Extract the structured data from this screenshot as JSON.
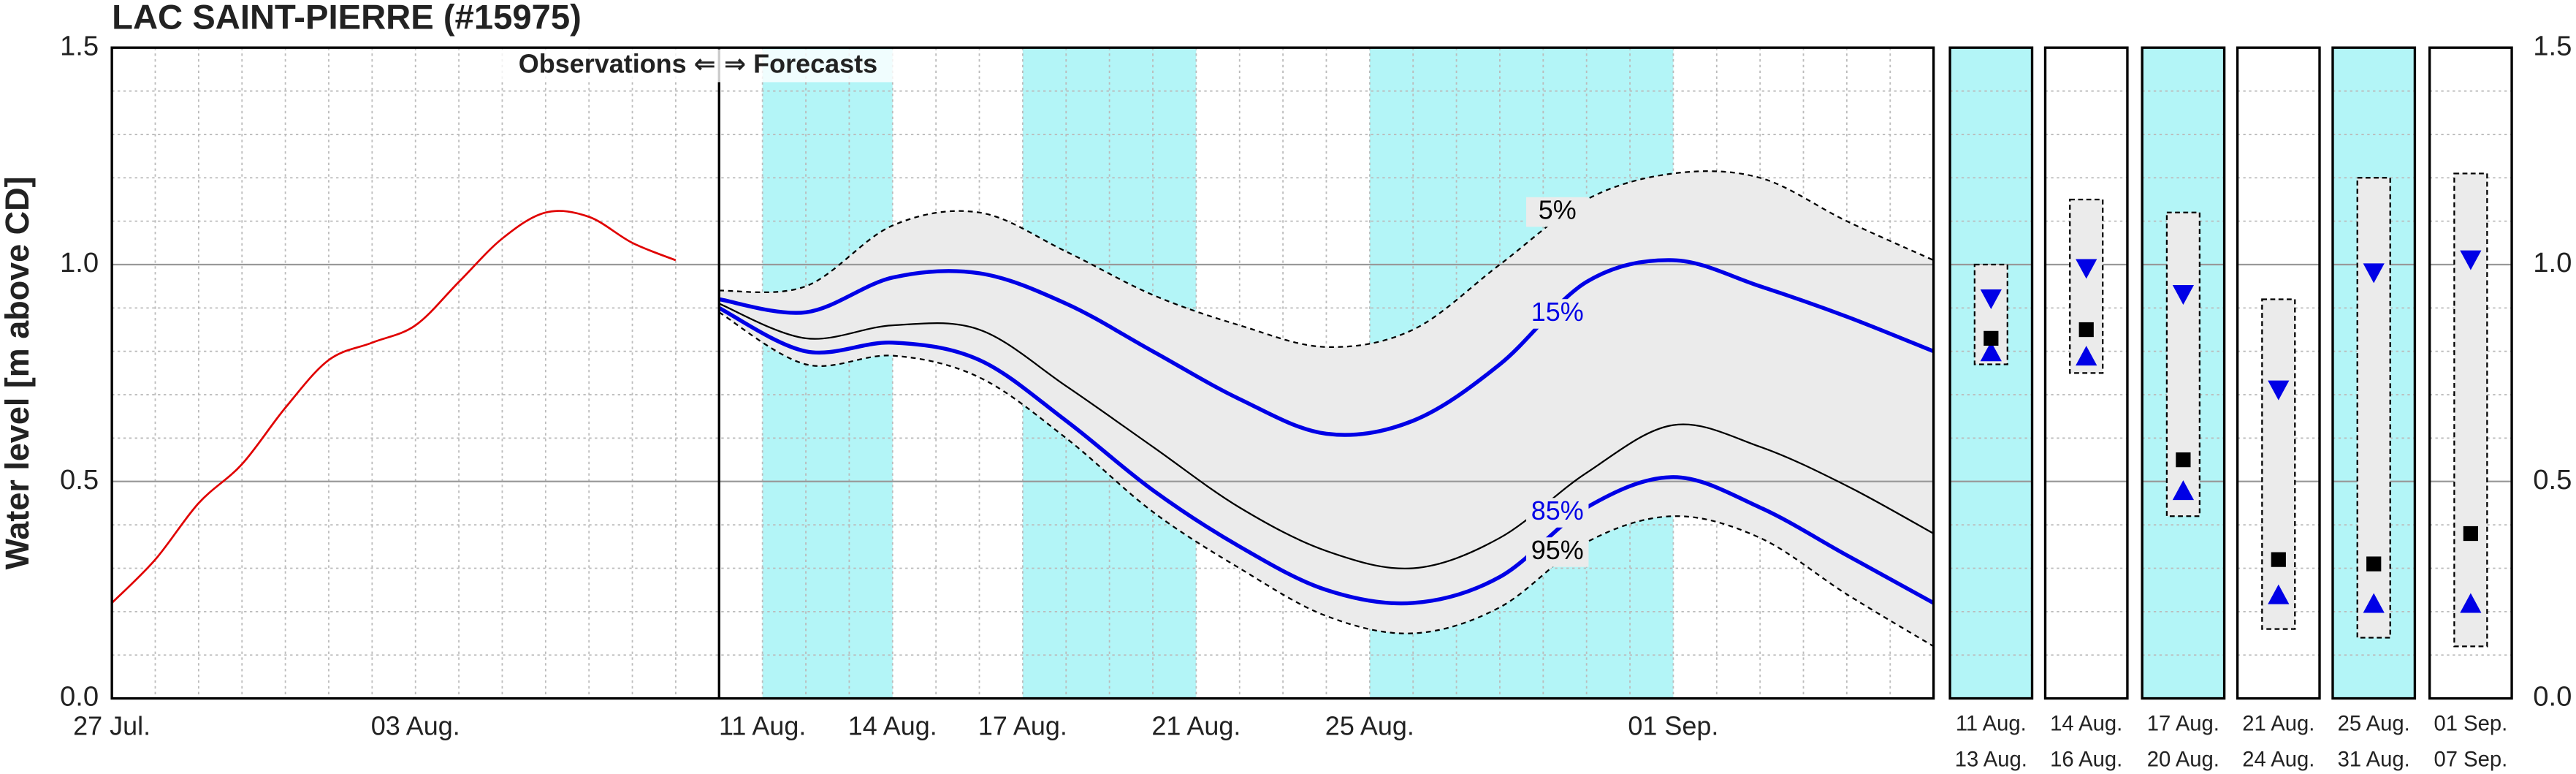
{
  "chart_data": {
    "type": "line",
    "title": "LAC SAINT-PIERRE (#15975)",
    "ylabel": "Water level [m above CD]",
    "annotations": [
      "Observations ⇐",
      "⇒ Forecasts"
    ],
    "xlim": [
      0,
      42
    ],
    "ylim": [
      0,
      1.5
    ],
    "yticks": [
      {
        "value": 0,
        "label": "0.0"
      },
      {
        "value": 0.5,
        "label": "0.5"
      },
      {
        "value": 1,
        "label": "1.0"
      },
      {
        "value": 1.5,
        "label": "1.5"
      }
    ],
    "y_minor_ticks": [
      0.1,
      0.2,
      0.3,
      0.4,
      0.6,
      0.7,
      0.8,
      0.9,
      1.1,
      1.2,
      1.3,
      1.4
    ],
    "xticks": [
      {
        "value": 0,
        "label": "27 Jul."
      },
      {
        "value": 7,
        "label": "03 Aug."
      },
      {
        "value": 15,
        "label": "11 Aug."
      },
      {
        "value": 18,
        "label": "14 Aug."
      },
      {
        "value": 21,
        "label": "17 Aug."
      },
      {
        "value": 25,
        "label": "21 Aug."
      },
      {
        "value": 29,
        "label": "25 Aug."
      },
      {
        "value": 36,
        "label": "01 Sep."
      }
    ],
    "x_minor_ticks": [
      1,
      2,
      3,
      4,
      5,
      6,
      8,
      9,
      10,
      11,
      12,
      13,
      16,
      17,
      19,
      20,
      22,
      23,
      24,
      26,
      27,
      28,
      30,
      31,
      32,
      33,
      34,
      35,
      37,
      38,
      39,
      40,
      41
    ],
    "grid": true,
    "split": 14,
    "shade_color": "#b3f5f7",
    "band_color": "#ebebeb",
    "shaded_ranges": [
      [
        15,
        18
      ],
      [
        21,
        25
      ],
      [
        29,
        36
      ]
    ],
    "observations": {
      "color": "#e00000",
      "x": [
        0,
        1,
        2,
        3,
        4,
        5,
        6,
        7,
        8,
        9,
        10,
        11,
        12,
        13
      ],
      "values": [
        0.22,
        0.32,
        0.45,
        0.54,
        0.67,
        0.78,
        0.82,
        0.86,
        0.96,
        1.06,
        1.12,
        1.11,
        1.05,
        1.01
      ]
    },
    "forecast_x": [
      14,
      16,
      18,
      20,
      22,
      24,
      26,
      28,
      30,
      32,
      34,
      36,
      38,
      40,
      42
    ],
    "series": [
      {
        "name": "5%",
        "color": "#000000",
        "dashed": true,
        "values": [
          0.94,
          0.95,
          1.09,
          1.12,
          1.03,
          0.93,
          0.86,
          0.81,
          0.85,
          1.0,
          1.15,
          1.21,
          1.2,
          1.1,
          1.01
        ]
      },
      {
        "name": "15%",
        "color": "#0000e6",
        "values": [
          0.92,
          0.89,
          0.97,
          0.98,
          0.91,
          0.8,
          0.69,
          0.61,
          0.64,
          0.77,
          0.96,
          1.01,
          0.95,
          0.88,
          0.8
        ]
      },
      {
        "color": "#000000",
        "values": [
          0.91,
          0.83,
          0.86,
          0.85,
          0.72,
          0.58,
          0.44,
          0.34,
          0.3,
          0.37,
          0.52,
          0.63,
          0.58,
          0.49,
          0.38
        ]
      },
      {
        "name": "85%",
        "color": "#0000e6",
        "values": [
          0.9,
          0.8,
          0.82,
          0.78,
          0.64,
          0.48,
          0.35,
          0.25,
          0.22,
          0.28,
          0.44,
          0.51,
          0.44,
          0.33,
          0.22
        ]
      },
      {
        "name": "95%",
        "color": "#000000",
        "dashed": true,
        "values": [
          0.89,
          0.77,
          0.79,
          0.74,
          0.6,
          0.43,
          0.3,
          0.19,
          0.15,
          0.21,
          0.36,
          0.42,
          0.37,
          0.24,
          0.12
        ]
      }
    ],
    "marker_colors": {
      "median": "#000000",
      "upper": "#0000e6",
      "lower": "#0000e6"
    },
    "panels": [
      {
        "labels": [
          "11 Aug.",
          "13 Aug."
        ],
        "shaded": true,
        "range": [
          0.77,
          1.0
        ],
        "median": 0.83,
        "upper": 0.92,
        "lower": 0.8
      },
      {
        "labels": [
          "14 Aug.",
          "16 Aug."
        ],
        "shaded": false,
        "range": [
          0.75,
          1.15
        ],
        "median": 0.85,
        "upper": 0.99,
        "lower": 0.79
      },
      {
        "labels": [
          "17 Aug.",
          "20 Aug."
        ],
        "shaded": true,
        "range": [
          0.42,
          1.12
        ],
        "median": 0.55,
        "upper": 0.93,
        "lower": 0.48
      },
      {
        "labels": [
          "21 Aug.",
          "24 Aug."
        ],
        "shaded": false,
        "range": [
          0.16,
          0.92
        ],
        "median": 0.32,
        "upper": 0.71,
        "lower": 0.24
      },
      {
        "labels": [
          "25 Aug.",
          "31 Aug."
        ],
        "shaded": true,
        "range": [
          0.14,
          1.2
        ],
        "median": 0.31,
        "upper": 0.98,
        "lower": 0.22
      },
      {
        "labels": [
          "01 Sep.",
          "07 Sep."
        ],
        "shaded": false,
        "range": [
          0.12,
          1.21
        ],
        "median": 0.38,
        "upper": 1.01,
        "lower": 0.22
      }
    ]
  }
}
